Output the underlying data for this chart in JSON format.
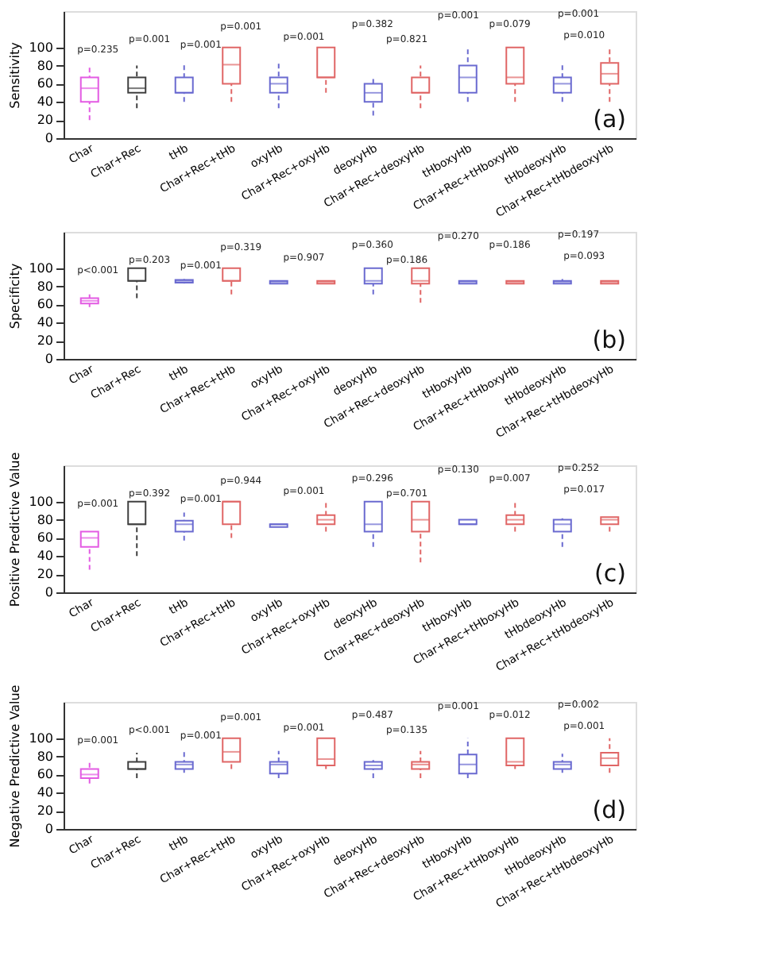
{
  "chart_data": [
    {
      "type": "box",
      "ylabel": "Sensitivity",
      "categories": [
        "Char",
        "Char+Rec",
        "tHb",
        "Char+Rec+tHb",
        "oxyHb",
        "Char+Rec+oxyHb",
        "deoxyHb",
        "Char+Rec+deoxyHb",
        "tHboxyHb",
        "Char+Rec+tHboxyHb",
        "tHbdeoxyHb",
        "Char+Rec+tHbdeoxyHb"
      ],
      "colors": [
        "#e35be3",
        "#404040",
        "#6a6ad0",
        "#e06666",
        "#6a6ad0",
        "#e06666",
        "#6a6ad0",
        "#e06666",
        "#6a6ad0",
        "#e06666",
        "#6a6ad0",
        "#e06666"
      ],
      "boxes": [
        {
          "low": 20,
          "q1": 40,
          "median": 55,
          "q3": 67,
          "high": 80
        },
        {
          "low": 33,
          "q1": 50,
          "median": 55,
          "q3": 67,
          "high": 80
        },
        {
          "low": 40,
          "q1": 50,
          "median": 50,
          "q3": 67,
          "high": 83
        },
        {
          "low": 40,
          "q1": 60,
          "median": 81,
          "q3": 100,
          "high": 100
        },
        {
          "low": 33,
          "q1": 50,
          "median": 60,
          "q3": 67,
          "high": 83
        },
        {
          "low": 50,
          "q1": 67,
          "median": 67,
          "q3": 100,
          "high": 100
        },
        {
          "low": 25,
          "q1": 40,
          "median": 50,
          "q3": 60,
          "high": 67
        },
        {
          "low": 33,
          "q1": 50,
          "median": 50,
          "q3": 67,
          "high": 80
        },
        {
          "low": 40,
          "q1": 50,
          "median": 67,
          "q3": 80,
          "high": 100
        },
        {
          "low": 40,
          "q1": 60,
          "median": 67,
          "q3": 100,
          "high": 100
        },
        {
          "low": 40,
          "q1": 50,
          "median": 60,
          "q3": 67,
          "high": 83
        },
        {
          "low": 40,
          "q1": 60,
          "median": 71,
          "q3": 83,
          "high": 100
        }
      ],
      "ylim": [
        0,
        140
      ],
      "yticks": [
        0,
        20,
        40,
        60,
        80,
        100
      ],
      "grid": false,
      "annotations": [
        "p=0.235",
        "p=0.001",
        "p=0.001",
        "p=0.001",
        "p=0.001",
        "p=0.382",
        "p=0.821",
        "p=0.001",
        "p=0.079",
        "p=0.001",
        "p=0.010",
        "(a)"
      ]
    },
    {
      "type": "box",
      "ylabel": "Specificity",
      "categories": [
        "Char",
        "Char+Rec",
        "tHb",
        "Char+Rec+tHb",
        "oxyHb",
        "Char+Rec+oxyHb",
        "deoxyHb",
        "Char+Rec+deoxyHb",
        "tHboxyHb",
        "Char+Rec+tHboxyHb",
        "tHbdeoxyHb",
        "Char+Rec+tHbdeoxyHb"
      ],
      "colors": [
        "#e35be3",
        "#404040",
        "#6a6ad0",
        "#e06666",
        "#6a6ad0",
        "#e06666",
        "#6a6ad0",
        "#e06666",
        "#6a6ad0",
        "#e06666",
        "#6a6ad0",
        "#e06666"
      ],
      "boxes": [
        {
          "low": 57,
          "q1": 61,
          "median": 64,
          "q3": 67,
          "high": 72
        },
        {
          "low": 67,
          "q1": 86,
          "median": 86,
          "q3": 100,
          "high": 100
        },
        {
          "low": 83,
          "q1": 84,
          "median": 86,
          "q3": 87,
          "high": 88
        },
        {
          "low": 71,
          "q1": 86,
          "median": 86,
          "q3": 100,
          "high": 100
        },
        {
          "low": 83,
          "q1": 83,
          "median": 85,
          "q3": 86,
          "high": 86
        },
        {
          "low": 83,
          "q1": 83,
          "median": 85,
          "q3": 86,
          "high": 86
        },
        {
          "low": 71,
          "q1": 83,
          "median": 86,
          "q3": 100,
          "high": 100
        },
        {
          "low": 62,
          "q1": 83,
          "median": 86,
          "q3": 100,
          "high": 100
        },
        {
          "low": 83,
          "q1": 83,
          "median": 85,
          "q3": 86,
          "high": 86
        },
        {
          "low": 83,
          "q1": 83,
          "median": 85,
          "q3": 86,
          "high": 86
        },
        {
          "low": 83,
          "q1": 83,
          "median": 85,
          "q3": 86,
          "high": 88
        },
        {
          "low": 83,
          "q1": 83,
          "median": 85,
          "q3": 86,
          "high": 86
        }
      ],
      "ylim": [
        0,
        140
      ],
      "yticks": [
        0,
        20,
        40,
        60,
        80,
        100
      ],
      "grid": false,
      "annotations": [
        "p<0.001",
        "p=0.203",
        "p=0.001",
        "p=0.319",
        "p=0.907",
        "p=0.360",
        "p=0.186",
        "p=0.270",
        "p=0.186",
        "p=0.197",
        "p=0.093",
        "(b)"
      ]
    },
    {
      "type": "box",
      "ylabel": "Positive Predictive Value",
      "categories": [
        "Char",
        "Char+Rec",
        "tHb",
        "Char+Rec+tHb",
        "oxyHb",
        "Char+Rec+oxyHb",
        "deoxyHb",
        "Char+Rec+deoxyHb",
        "tHboxyHb",
        "Char+Rec+tHboxyHb",
        "tHbdeoxyHb",
        "Char+Rec+tHbdeoxyHb"
      ],
      "colors": [
        "#e35be3",
        "#404040",
        "#6a6ad0",
        "#e06666",
        "#6a6ad0",
        "#e06666",
        "#6a6ad0",
        "#e06666",
        "#6a6ad0",
        "#e06666",
        "#6a6ad0",
        "#e06666"
      ],
      "boxes": [
        {
          "low": 25,
          "q1": 50,
          "median": 60,
          "q3": 67,
          "high": 67
        },
        {
          "low": 40,
          "q1": 75,
          "median": 75,
          "q3": 100,
          "high": 100
        },
        {
          "low": 57,
          "q1": 67,
          "median": 75,
          "q3": 79,
          "high": 88
        },
        {
          "low": 60,
          "q1": 75,
          "median": 100,
          "q3": 100,
          "high": 100
        },
        {
          "low": 72,
          "q1": 72,
          "median": 75,
          "q3": 75,
          "high": 75
        },
        {
          "low": 67,
          "q1": 75,
          "median": 80,
          "q3": 85,
          "high": 100
        },
        {
          "low": 50,
          "q1": 67,
          "median": 75,
          "q3": 100,
          "high": 100
        },
        {
          "low": 33,
          "q1": 67,
          "median": 80,
          "q3": 100,
          "high": 100
        },
        {
          "low": 75,
          "q1": 75,
          "median": 75,
          "q3": 80,
          "high": 83
        },
        {
          "low": 67,
          "q1": 75,
          "median": 80,
          "q3": 85,
          "high": 100
        },
        {
          "low": 50,
          "q1": 67,
          "median": 75,
          "q3": 80,
          "high": 83
        },
        {
          "low": 67,
          "q1": 75,
          "median": 80,
          "q3": 83,
          "high": 83
        }
      ],
      "ylim": [
        0,
        140
      ],
      "yticks": [
        0,
        20,
        40,
        60,
        80,
        100
      ],
      "grid": false,
      "annotations": [
        "p=0.001",
        "p=0.392",
        "p=0.001",
        "p=0.944",
        "p=0.001",
        "p=0.296",
        "p=0.701",
        "p=0.130",
        "p=0.007",
        "p=0.252",
        "p=0.017",
        "(c)"
      ]
    },
    {
      "type": "box",
      "ylabel": "Negative Predictive Value",
      "categories": [
        "Char",
        "Char+Rec",
        "tHb",
        "Char+Rec+tHb",
        "oxyHb",
        "Char+Rec+oxyHb",
        "deoxyHb",
        "Char+Rec+deoxyHb",
        "tHboxyHb",
        "Char+Rec+tHboxyHb",
        "tHbdeoxyHb",
        "Char+Rec+tHbdeoxyHb"
      ],
      "colors": [
        "#e35be3",
        "#404040",
        "#6a6ad0",
        "#e06666",
        "#6a6ad0",
        "#e06666",
        "#6a6ad0",
        "#e06666",
        "#6a6ad0",
        "#e06666",
        "#6a6ad0",
        "#e06666"
      ],
      "boxes": [
        {
          "low": 50,
          "q1": 56,
          "median": 60,
          "q3": 66,
          "high": 76
        },
        {
          "low": 56,
          "q1": 66,
          "median": 66,
          "q3": 74,
          "high": 84
        },
        {
          "low": 62,
          "q1": 66,
          "median": 71,
          "q3": 74,
          "high": 86
        },
        {
          "low": 66,
          "q1": 74,
          "median": 85,
          "q3": 100,
          "high": 100
        },
        {
          "low": 56,
          "q1": 61,
          "median": 71,
          "q3": 74,
          "high": 86
        },
        {
          "low": 66,
          "q1": 70,
          "median": 77,
          "q3": 100,
          "high": 100
        },
        {
          "low": 56,
          "q1": 66,
          "median": 70,
          "q3": 74,
          "high": 76
        },
        {
          "low": 56,
          "q1": 66,
          "median": 71,
          "q3": 74,
          "high": 86
        },
        {
          "low": 56,
          "q1": 61,
          "median": 71,
          "q3": 82,
          "high": 100
        },
        {
          "low": 66,
          "q1": 70,
          "median": 74,
          "q3": 100,
          "high": 100
        },
        {
          "low": 62,
          "q1": 66,
          "median": 71,
          "q3": 74,
          "high": 83
        },
        {
          "low": 62,
          "q1": 70,
          "median": 78,
          "q3": 84,
          "high": 100
        }
      ],
      "ylim": [
        0,
        140
      ],
      "yticks": [
        0,
        20,
        40,
        60,
        80,
        100
      ],
      "grid": false,
      "annotations": [
        "p=0.001",
        "p<0.001",
        "p=0.001",
        "p=0.001",
        "p=0.001",
        "p=0.487",
        "p=0.135",
        "p=0.001",
        "p=0.012",
        "p=0.002",
        "p=0.001",
        "(d)"
      ]
    }
  ]
}
